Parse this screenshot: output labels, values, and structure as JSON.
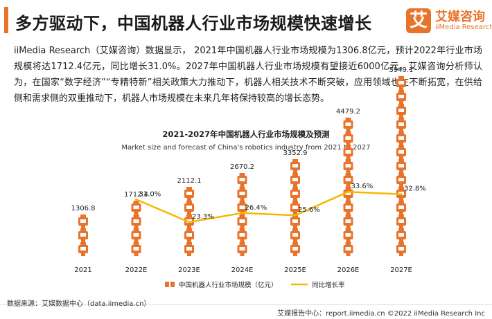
{
  "header": {
    "title": "多方驱动下，中国机器人行业市场规模快速增长",
    "logo_glyph": "艾",
    "logo_name": "艾媒咨询",
    "logo_name_en": "iiMedia Research",
    "accent_color": "#e8742c"
  },
  "body": {
    "paragraph": "iiMedia Research（艾媒咨询）数据显示， 2021年中国机器人行业市场规模为1306.8亿元，预计2022年行业市场规模将达1712.4亿元，同比增长31.0%。2027年中国机器人行业市场规模有望接近6000亿元。艾媒咨询分析师认为，在国家“数字经济”“专精特新”相关政策大力推动下，机器人相关技术不断突破，应用领域也在不断拓宽，在供给侧和需求侧的双重推动下，机器人市场规模在未来几年将保持较高的增长态势。"
  },
  "chart_data": {
    "type": "bar",
    "title": "2021-2027年中国机器人行业市场规模及预测",
    "subtitle": "Market size and forecast of China's robotics industry from 2021 to 2027",
    "categories": [
      "2021",
      "2022E",
      "2023E",
      "2024E",
      "2025E",
      "2026E",
      "2027E"
    ],
    "series": [
      {
        "name": "中国机器人行业市场规模（亿元）",
        "type": "bar",
        "values": [
          1306.8,
          1712.4,
          2112.1,
          2670.2,
          3352.9,
          4479.2,
          5949.1
        ],
        "value_labels": [
          "1306.8",
          "1712.4",
          "2112.1",
          "2670.2",
          "3352.9",
          "4479.2",
          "5949.1"
        ],
        "color": "#e8742c"
      },
      {
        "name": "同比增长率",
        "type": "line",
        "x": [
          "2022E",
          "2023E",
          "2024E",
          "2025E",
          "2026E",
          "2027E"
        ],
        "values": [
          31.0,
          23.3,
          26.4,
          25.6,
          33.6,
          32.8
        ],
        "value_labels": [
          "31.0%",
          "23.3%",
          "26.4%",
          "25.6%",
          "33.6%",
          "32.8%"
        ],
        "color": "#f5b800"
      }
    ],
    "legend": "bottom",
    "grid": false
  },
  "footer": {
    "source": "数据来源：艾媒数据中心（data.iimedia.cn）",
    "report_center": "艾媒报告中心：report.iimedia.cn  ©2022  iiMedia Research Inc"
  }
}
